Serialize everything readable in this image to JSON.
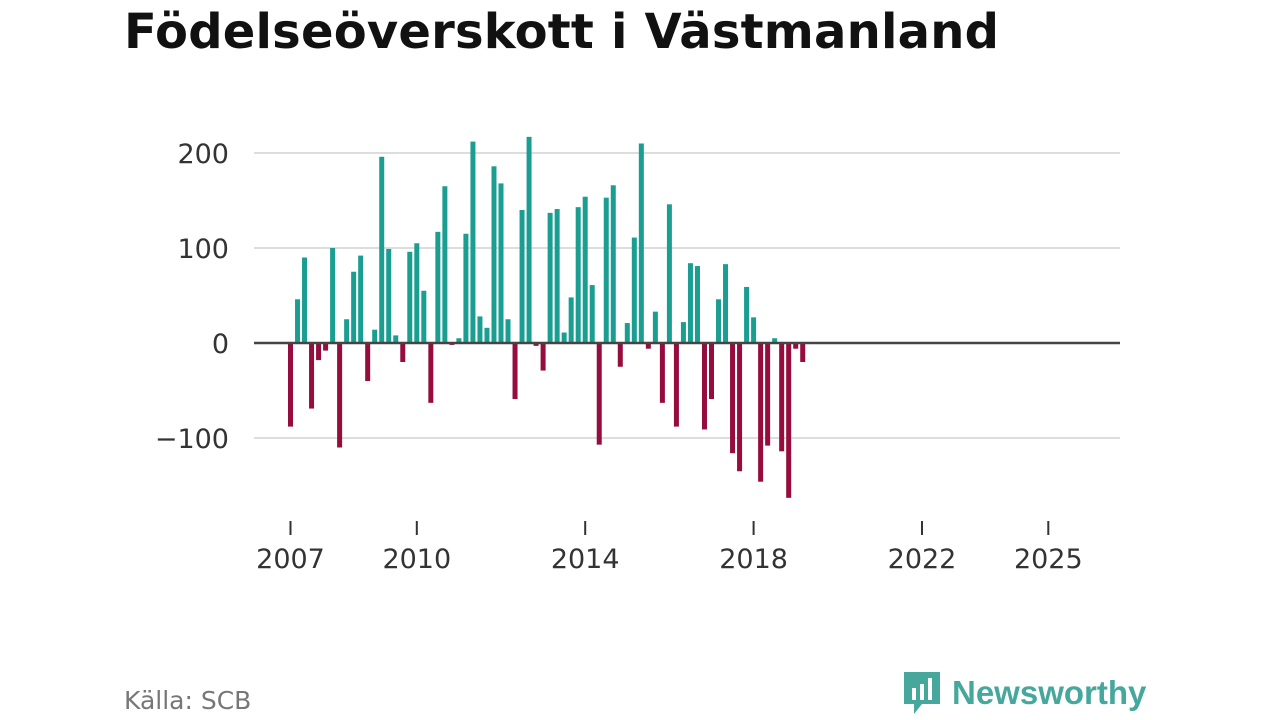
{
  "title": "Födelseöverskott i Västmanland",
  "source": "Källa: SCB",
  "brand": {
    "name": "Newsworthy",
    "icon": "newsworthy-logo-icon"
  },
  "colors": {
    "positive": "#1a9e92",
    "negative": "#960c3c",
    "grid": "#dddddd",
    "zero_line": "#444444",
    "text": "#333333",
    "brand": "#46a89c"
  },
  "chart_data": {
    "type": "bar",
    "title": "Födelseöverskott i Västmanland",
    "xlabel": "",
    "ylabel": "",
    "frequency": "monthly-odd",
    "start_year": 2007,
    "start_month": 1,
    "y_ticks": [
      200,
      100,
      0,
      -100
    ],
    "y_tick_labels": [
      "200",
      "100",
      "0",
      "−100"
    ],
    "ylim": [
      -165,
      225
    ],
    "x_ticks": [
      {
        "year": 2007,
        "label": "2007"
      },
      {
        "year": 2010,
        "label": "2010"
      },
      {
        "year": 2014,
        "label": "2014"
      },
      {
        "year": 2018,
        "label": "2018"
      },
      {
        "year": 2022,
        "label": "2022"
      },
      {
        "year": 2025,
        "label": "2025"
      }
    ],
    "values": [
      -88,
      46,
      90,
      -69,
      -18,
      -8,
      100,
      -110,
      25,
      75,
      92,
      -40,
      14,
      196,
      99,
      8,
      -20,
      96,
      105,
      55,
      -63,
      117,
      165,
      -2,
      5,
      115,
      212,
      28,
      16,
      186,
      168,
      25,
      -59,
      140,
      217,
      -3,
      -29,
      137,
      141,
      11,
      48,
      143,
      154,
      61,
      -107,
      153,
      166,
      -25,
      21,
      111,
      210,
      -6,
      33,
      -63,
      146,
      -88,
      22,
      84,
      81,
      -91,
      -59,
      46,
      83,
      -116,
      -135,
      59,
      27,
      -146,
      -108,
      5,
      -114,
      -163,
      -6,
      -20
    ]
  }
}
